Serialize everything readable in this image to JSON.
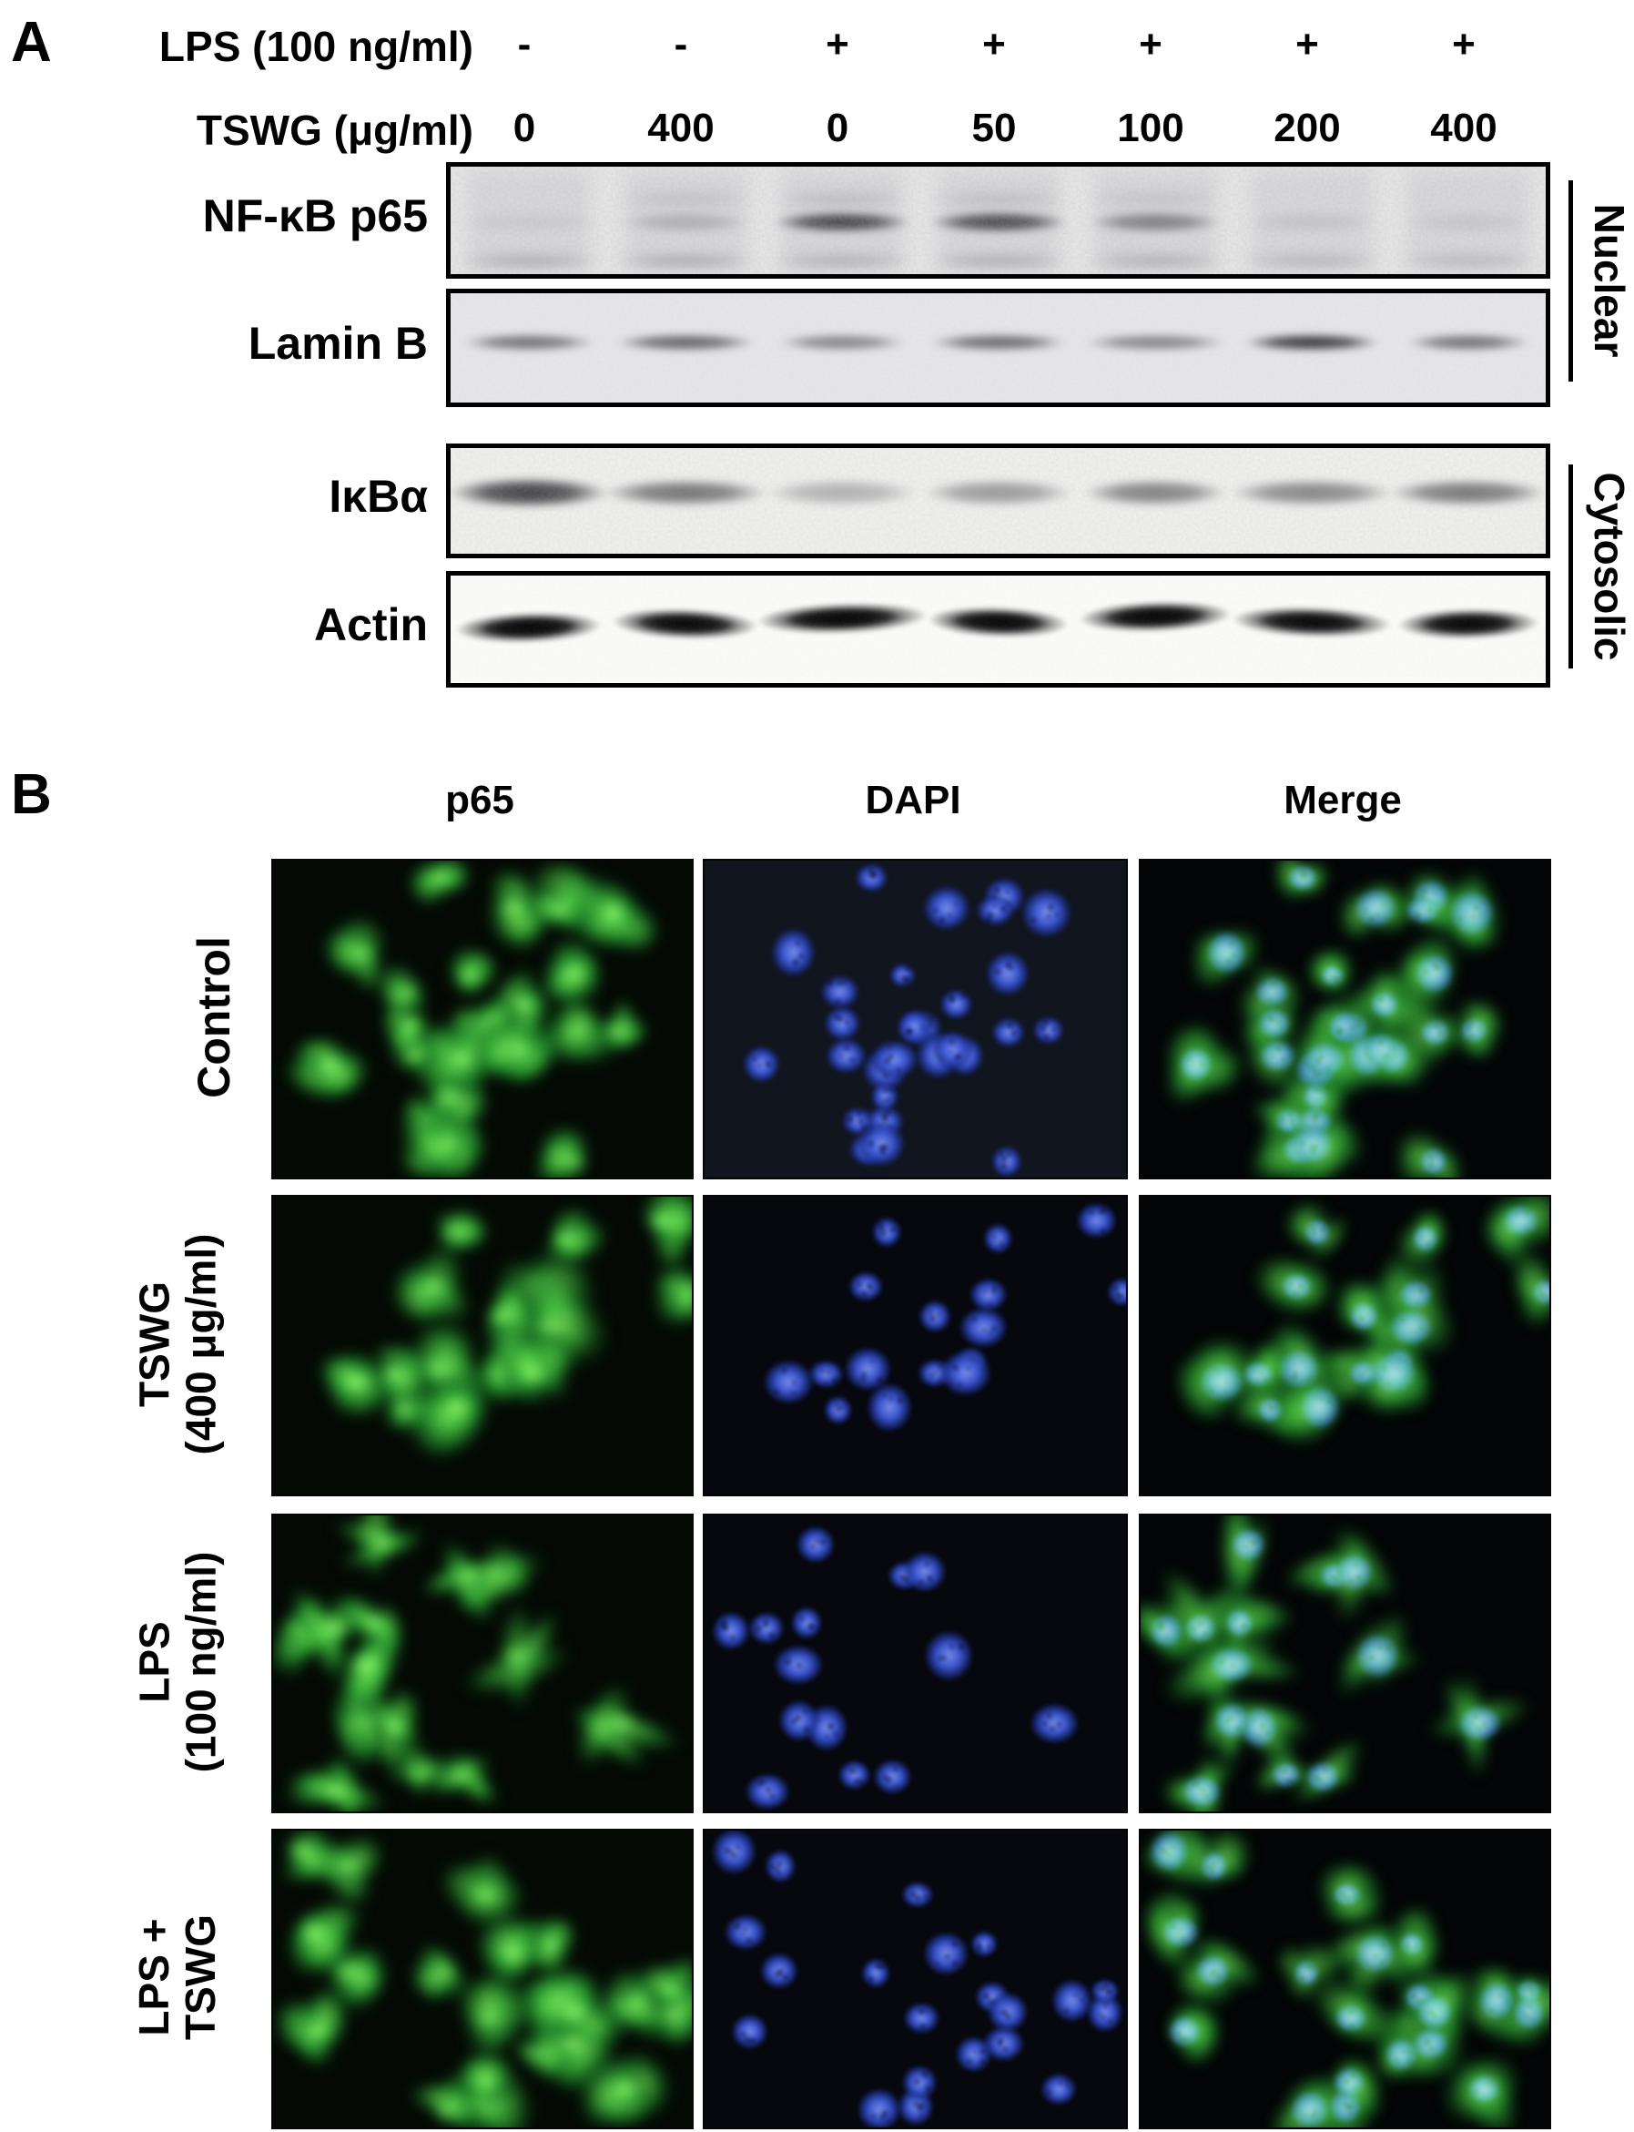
{
  "panel_a": {
    "label": "A",
    "header_rows": [
      {
        "label": "LPS (100 ng/ml)",
        "values": [
          "-",
          "-",
          "+",
          "+",
          "+",
          "+",
          "+"
        ]
      },
      {
        "label": "TSWG (μg/ml)",
        "values": [
          "0",
          "400",
          "0",
          "50",
          "100",
          "200",
          "400"
        ]
      }
    ],
    "blots": [
      {
        "name": "NF-κB p65",
        "group": "Nuclear",
        "bands": [
          0.06,
          0.22,
          0.85,
          0.82,
          0.5,
          0.1,
          0.08
        ],
        "upper_smear": [
          0,
          0.16,
          0.2,
          0.18,
          0.14,
          0,
          0
        ],
        "lower_smear": [
          0.3,
          0.32,
          0.28,
          0.3,
          0.28,
          0.24,
          0.22
        ]
      },
      {
        "name": "Lamin B",
        "group": "Nuclear",
        "bands": [
          0.58,
          0.65,
          0.48,
          0.62,
          0.48,
          0.88,
          0.58
        ]
      },
      {
        "name": "IκBα",
        "group": "Cytosolic",
        "bands": [
          0.88,
          0.62,
          0.3,
          0.42,
          0.55,
          0.52,
          0.6
        ]
      },
      {
        "name": "Actin",
        "group": "Cytosolic",
        "bands": [
          0.96,
          0.93,
          0.96,
          0.94,
          0.96,
          0.92,
          0.94
        ]
      }
    ],
    "group_labels": [
      "Nuclear",
      "Cytosolic"
    ]
  },
  "panel_b": {
    "label": "B",
    "column_headers": [
      "p65",
      "DAPI",
      "Merge"
    ],
    "rows": [
      {
        "label_lines": [
          "Control"
        ],
        "cells": 28,
        "pattern": "dense"
      },
      {
        "label_lines": [
          "TSWG",
          "(400 μg/ml)"
        ],
        "cells": 16,
        "pattern": "cluster"
      },
      {
        "label_lines": [
          "LPS",
          "(100 ng/ml)"
        ],
        "cells": 14,
        "pattern": "sparse"
      },
      {
        "label_lines": [
          "LPS +",
          "TSWG"
        ],
        "cells": 21,
        "pattern": "cluster-low"
      }
    ],
    "colors": {
      "p65_green": "#3fd23c",
      "dapi_blue": "#3a55d8",
      "background": "#000000"
    }
  }
}
